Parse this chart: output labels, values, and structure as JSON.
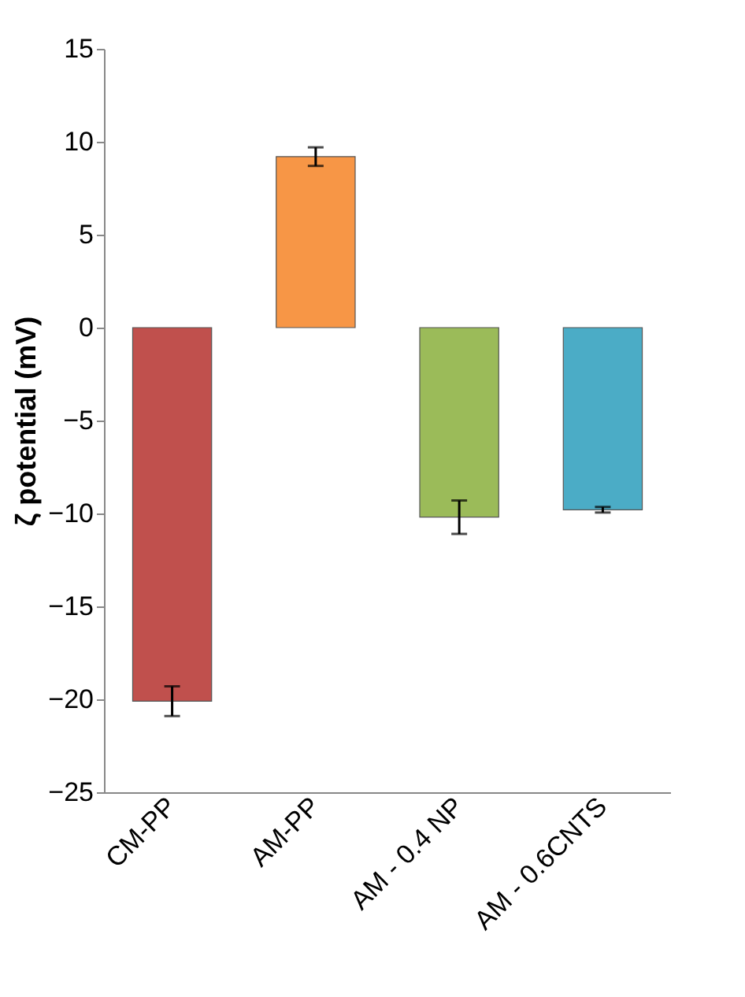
{
  "chart_data": {
    "type": "bar",
    "ylabel": "ζ potential (mV)",
    "categories": [
      "CM-PP",
      "AM-PP",
      "AM - 0.4 NP",
      "AM - 0.6CNTS"
    ],
    "values": [
      -20.1,
      9.2,
      -10.2,
      -9.8
    ],
    "colors": [
      "#c0504d",
      "#f79646",
      "#9bbb59",
      "#4bacc6"
    ],
    "errors": [
      0.8,
      0.5,
      0.9,
      0.15
    ],
    "ylim": [
      -25,
      15
    ],
    "yticks": [
      -25,
      -20,
      -15,
      -10,
      -5,
      0,
      5,
      10,
      15
    ],
    "grid": false
  }
}
